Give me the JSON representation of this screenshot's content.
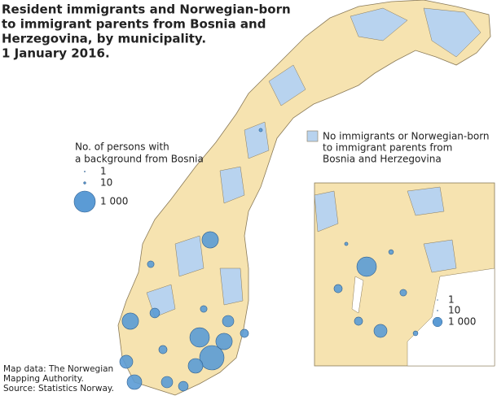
{
  "title": [
    "Resident immigrants and Norwegian-born",
    "to immigrant parents from Bosnia and",
    "Herzegovina, by municipality.",
    "1 January 2016."
  ],
  "legend": {
    "title": [
      "No. of persons with",
      "a background from Bosnia"
    ],
    "sizes": [
      {
        "value": 1,
        "label": "1"
      },
      {
        "value": 10,
        "label": "10"
      },
      {
        "value": 1000,
        "label": "1 000"
      }
    ],
    "none_label": [
      "No immigrants or Norwegian-born",
      "to immigrant parents from",
      "Bosnia and Herzegovina"
    ],
    "none_color": "#b8d3ef",
    "bubble_color": "#5b9bd5"
  },
  "inset_legend": {
    "sizes": [
      {
        "value": 1,
        "label": "1"
      },
      {
        "value": 10,
        "label": "10"
      },
      {
        "value": 1000,
        "label": "1 000"
      }
    ]
  },
  "source": [
    "Map data: The Norwegian",
    "Mapping Authority.",
    "Source: Statistics Norway."
  ],
  "map": {
    "bubbles": [
      600,
      600,
      380,
      480,
      1330,
      850,
      600,
      480,
      290,
      290,
      210,
      100,
      210,
      150,
      25,
      100,
      150
    ],
    "inset_bubbles": [
      850,
      380,
      150,
      150,
      100,
      50,
      25,
      50
    ]
  }
}
